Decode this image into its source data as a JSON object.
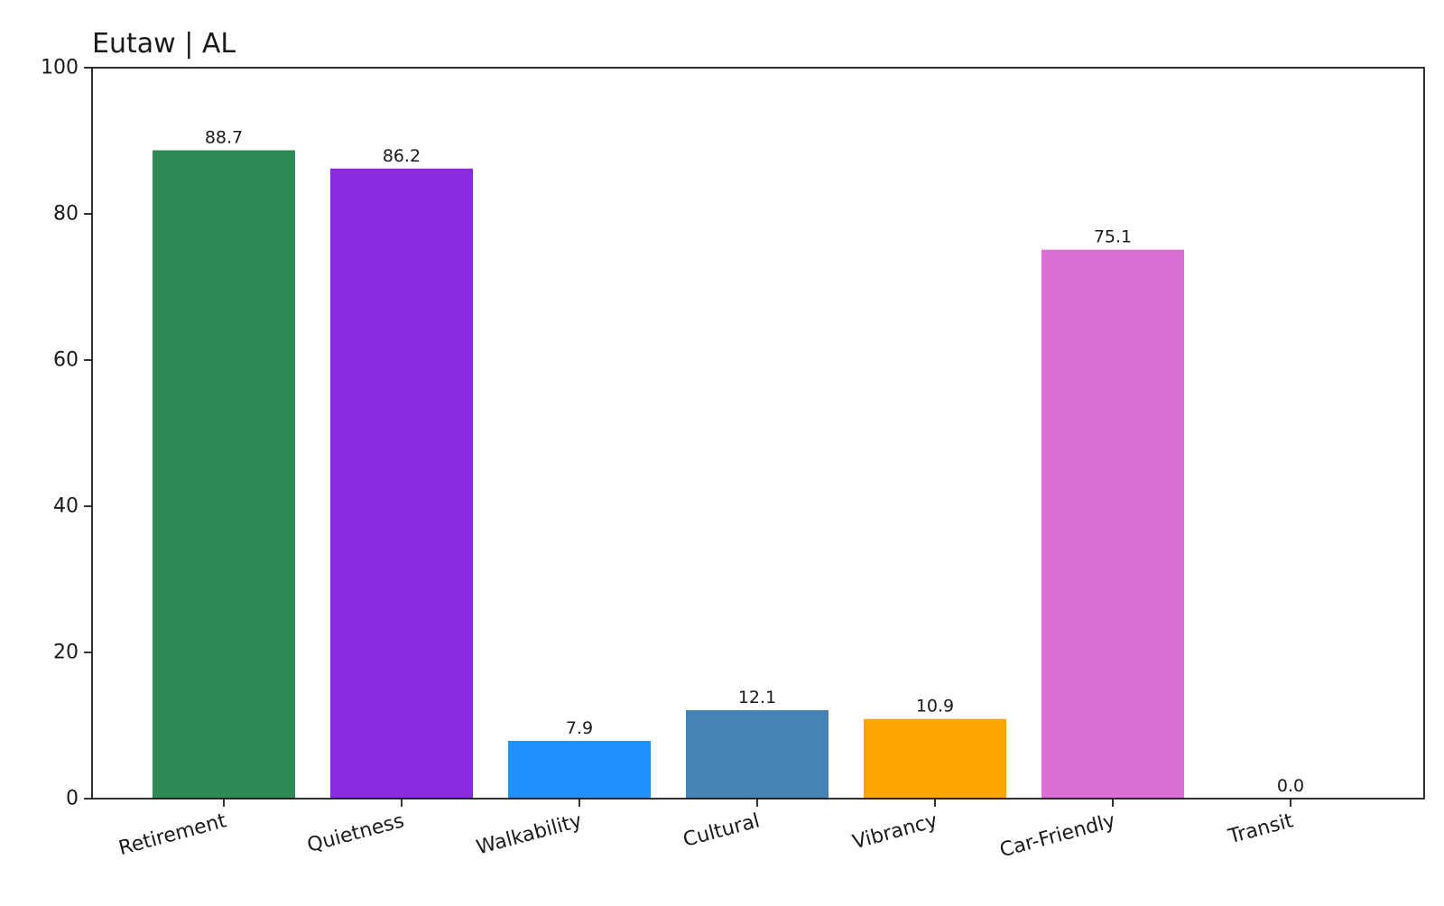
{
  "chart_data": {
    "type": "bar",
    "title": "Eutaw | AL",
    "xlabel": "",
    "ylabel": "",
    "categories": [
      "Retirement",
      "Quietness",
      "Walkability",
      "Cultural",
      "Vibrancy",
      "Car-Friendly",
      "Transit"
    ],
    "values": [
      88.7,
      86.2,
      7.9,
      12.1,
      10.9,
      75.1,
      0.0
    ],
    "value_labels": [
      "88.7",
      "86.2",
      "7.9",
      "12.1",
      "10.9",
      "75.1",
      "0.0"
    ],
    "colors": [
      "#2e8b57",
      "#8a2be2",
      "#1e90ff",
      "#4682b4",
      "#ffa500",
      "#da70d6",
      "#808080"
    ],
    "ylim": [
      0,
      100
    ],
    "yticks": [
      0,
      20,
      40,
      60,
      80,
      100
    ],
    "ytick_labels": [
      "0",
      "20",
      "40",
      "60",
      "80",
      "100"
    ],
    "grid": false,
    "legend": "none"
  }
}
